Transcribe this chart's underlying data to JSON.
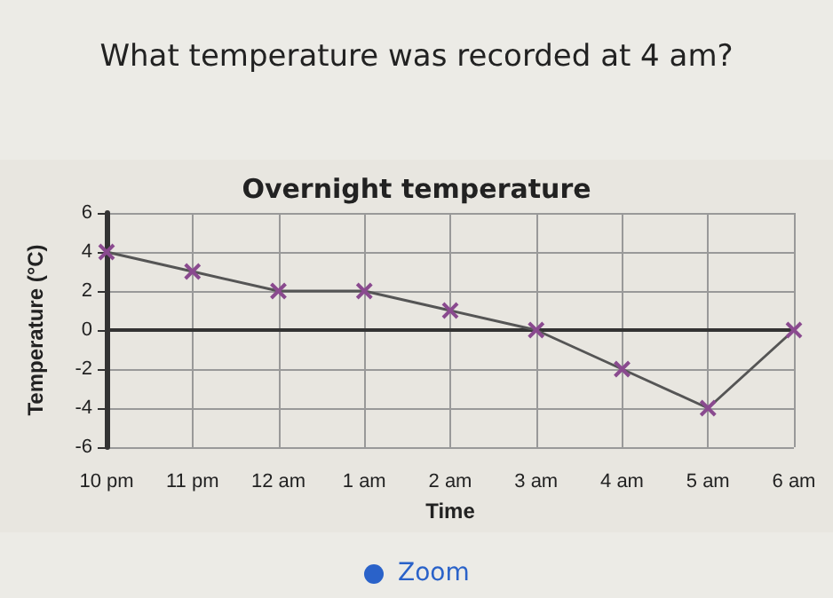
{
  "chart_data": {
    "type": "line",
    "title": "What temperature was recorded at 4 am?",
    "subtitle": "Overnight temperature",
    "xlabel": "Time",
    "ylabel": "Temperature (°C)",
    "categories": [
      "10 pm",
      "11 pm",
      "12 am",
      "1 am",
      "2 am",
      "3 am",
      "4 am",
      "5 am",
      "6 am"
    ],
    "series": [
      {
        "color": "#555555",
        "values": [
          4,
          3,
          2,
          2,
          1,
          0,
          -2,
          -4,
          0
        ]
      }
    ],
    "ylim": [
      -6,
      6
    ],
    "yticks": [
      -6,
      -4,
      -2,
      0,
      2,
      4,
      6
    ],
    "grid": true,
    "marker": "cross",
    "line_style": "solid",
    "annotations": [
      "Zoom"
    ]
  }
}
